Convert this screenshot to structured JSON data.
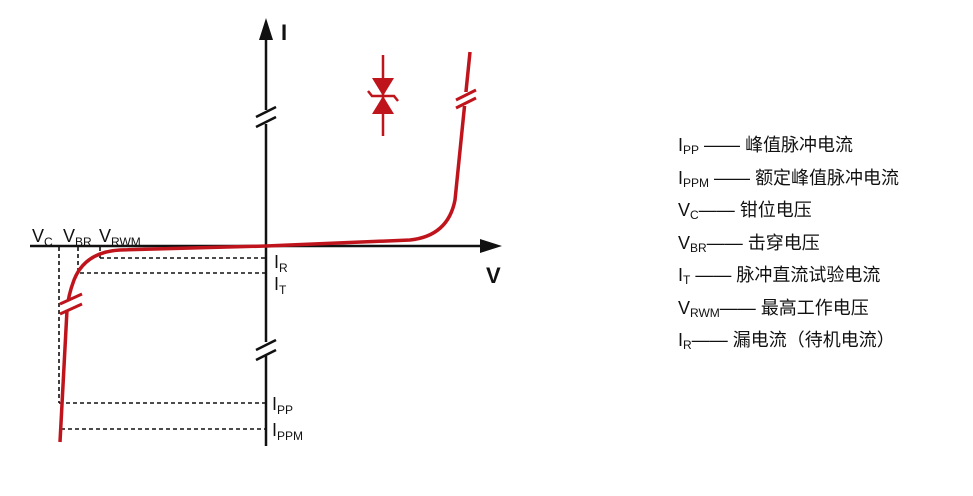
{
  "axes": {
    "y_label": "I",
    "x_label": "V"
  },
  "voltage_labels": [
    {
      "main": "V",
      "sub": "C"
    },
    {
      "main": "V",
      "sub": "BR"
    },
    {
      "main": "V",
      "sub": "RWM"
    }
  ],
  "current_labels": [
    {
      "main": "I",
      "sub": "R"
    },
    {
      "main": "I",
      "sub": "T"
    },
    {
      "main": "I",
      "sub": "PP"
    },
    {
      "main": "I",
      "sub": "PPM"
    }
  ],
  "legend": [
    {
      "main": "I",
      "sub": "PP",
      "dash": "——",
      "desc": "峰值脉冲电流"
    },
    {
      "main": "I",
      "sub": "PPM",
      "dash": "——",
      "desc": "额定峰值脉冲电流"
    },
    {
      "main": "V",
      "sub": "C",
      "dash": "——",
      "desc": "钳位电压"
    },
    {
      "main": "V",
      "sub": "BR",
      "dash": "——",
      "desc": "击穿电压"
    },
    {
      "main": "I",
      "sub": "T",
      "dash": "——",
      "desc": "脉冲直流试验电流"
    },
    {
      "main": "V",
      "sub": "RWM",
      "dash": "——",
      "desc": "最高工作电压"
    },
    {
      "main": "I",
      "sub": "R",
      "dash": "——",
      "desc": "漏电流（待机电流）"
    }
  ],
  "colors": {
    "curve": "#c0141c",
    "axes": "#111111",
    "diode_symbol": "#c0141c"
  },
  "icons": {
    "diode": "bidirectional-tvs-diode-icon"
  }
}
